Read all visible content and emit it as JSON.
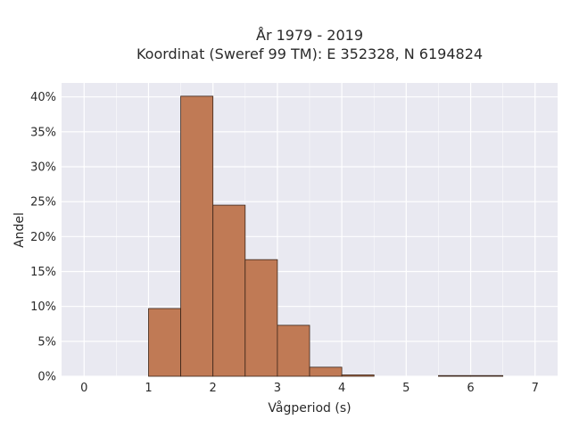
{
  "chart_data": {
    "type": "bar",
    "title": [
      "År 1979 - 2019",
      "Koordinat (Sweref 99 TM): E 352328, N 6194824"
    ],
    "xlabel": "Vågperiod (s)",
    "ylabel": "Andel",
    "xlim": [
      -0.35,
      7.35
    ],
    "ylim": [
      0,
      0.42
    ],
    "x_ticks": [
      0,
      1,
      2,
      3,
      4,
      5,
      6,
      7
    ],
    "y_ticks": [
      0,
      0.05,
      0.1,
      0.15,
      0.2,
      0.25,
      0.3,
      0.35,
      0.4
    ],
    "y_tick_labels": [
      "0%",
      "5%",
      "10%",
      "15%",
      "20%",
      "25%",
      "30%",
      "35%",
      "40%"
    ],
    "bin_width": 0.5,
    "bins": [
      {
        "start": 1.0,
        "end": 1.5,
        "value": 0.097
      },
      {
        "start": 1.5,
        "end": 2.0,
        "value": 0.401
      },
      {
        "start": 2.0,
        "end": 2.5,
        "value": 0.245
      },
      {
        "start": 2.5,
        "end": 3.0,
        "value": 0.167
      },
      {
        "start": 3.0,
        "end": 3.5,
        "value": 0.073
      },
      {
        "start": 3.5,
        "end": 4.0,
        "value": 0.013
      },
      {
        "start": 4.0,
        "end": 4.5,
        "value": 0.002
      },
      {
        "start": 5.5,
        "end": 6.0,
        "value": 0.001
      },
      {
        "start": 6.0,
        "end": 6.5,
        "value": 0.001
      }
    ],
    "bar_color": "#c07a55",
    "bar_edge_color": "#3a2418",
    "plot_bg": "#e9e9f1",
    "grid": true,
    "grid_color": "#ffffff",
    "legend": false
  }
}
